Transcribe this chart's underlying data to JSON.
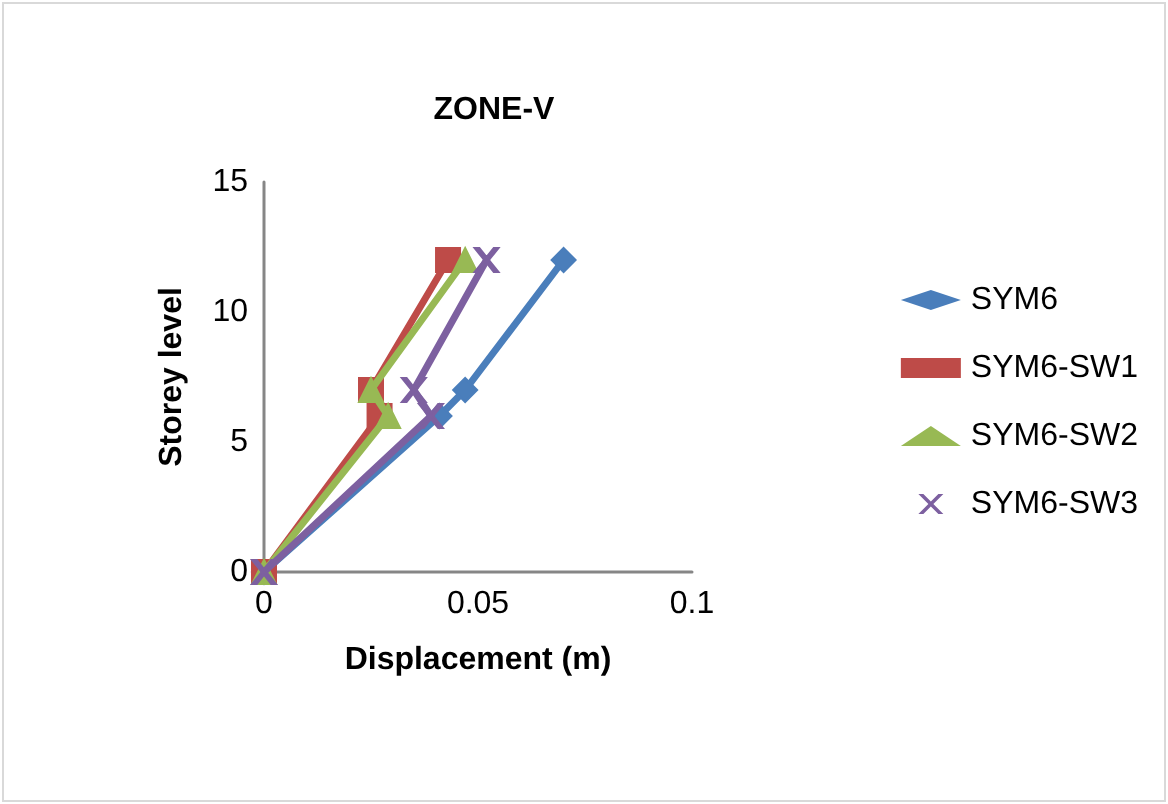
{
  "chart_data": {
    "type": "line",
    "title": "ZONE-V",
    "xlabel": "Displacement (m)",
    "ylabel": "Storey level",
    "series": [
      {
        "name": "SYM6",
        "color": "#4a7ebb",
        "marker": "diamond",
        "x": [
          0,
          0.041,
          0.047,
          0.07
        ],
        "values": [
          0,
          6,
          7,
          12
        ]
      },
      {
        "name": "SYM6-SW1",
        "color": "#be4b48",
        "marker": "square",
        "x": [
          0,
          0.027,
          0.025,
          0.043
        ],
        "values": [
          0,
          6,
          7,
          12
        ]
      },
      {
        "name": "SYM6-SW2",
        "color": "#98b954",
        "marker": "triangle",
        "x": [
          0,
          0.029,
          0.025,
          0.047
        ],
        "values": [
          0,
          6,
          7,
          12
        ]
      },
      {
        "name": "SYM6-SW3",
        "color": "#7d60a0",
        "marker": "cross",
        "x": [
          0,
          0.039,
          0.035,
          0.052
        ],
        "values": [
          0,
          6,
          7,
          12
        ]
      }
    ],
    "xlim": [
      0,
      0.1
    ],
    "xticks": [
      0,
      0.05,
      0.1
    ],
    "ylim": [
      0,
      15
    ],
    "yticks": [
      0,
      5,
      10,
      15
    ],
    "grid": false,
    "legend": "right"
  }
}
